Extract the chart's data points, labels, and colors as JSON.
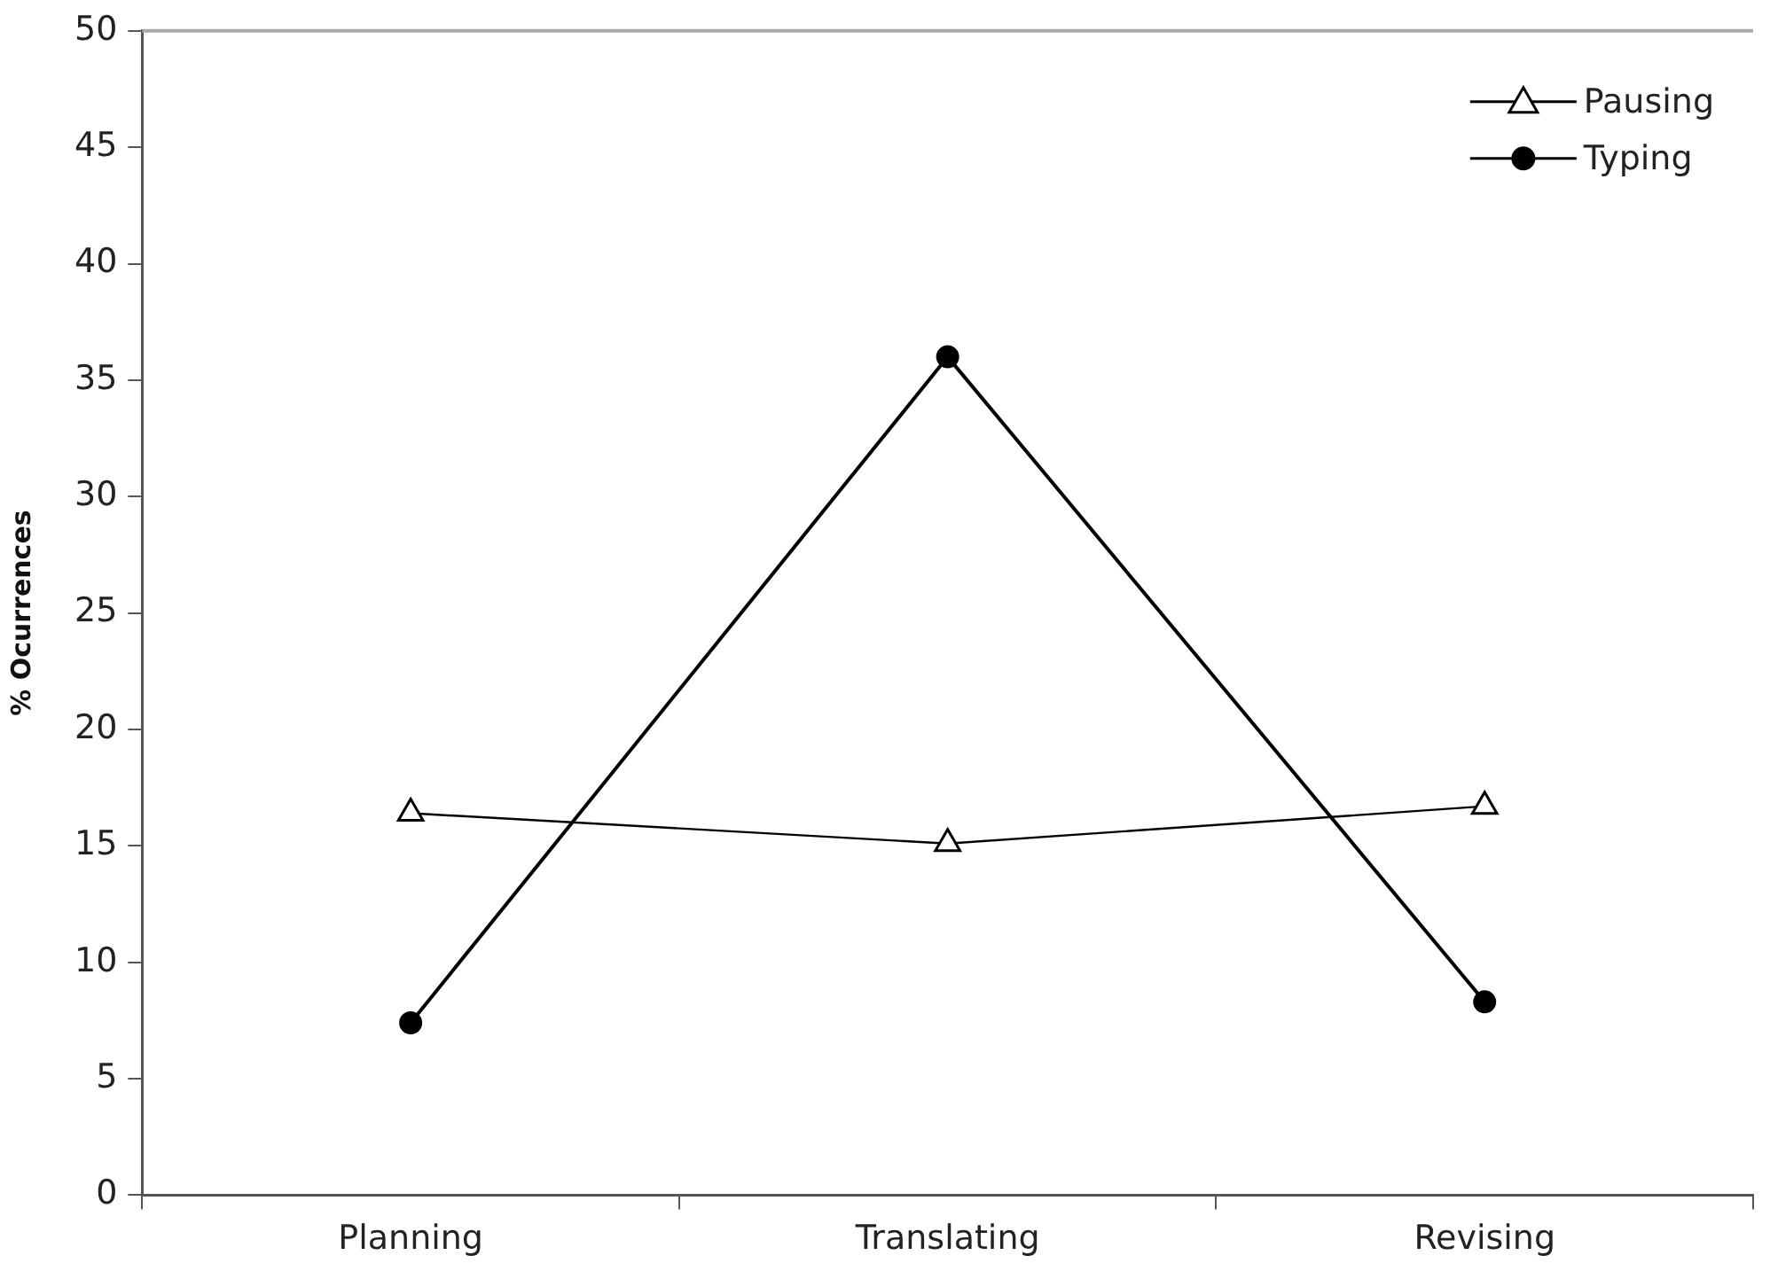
{
  "chart_data": {
    "type": "line",
    "ylabel": "% Ocurrences",
    "categories": [
      "Planning",
      "Translating",
      "Revising"
    ],
    "series": [
      {
        "name": "Pausing",
        "color": "#000000",
        "marker": "triangle",
        "values": [
          16.4,
          15.1,
          16.7
        ]
      },
      {
        "name": "Typing",
        "color": "#000000",
        "marker": "circle",
        "values": [
          7.4,
          36.0,
          8.3
        ]
      }
    ],
    "ylim": [
      0,
      50
    ],
    "yticks": [
      0,
      5,
      10,
      15,
      20,
      25,
      30,
      35,
      40,
      45,
      50
    ],
    "grid": false,
    "legend": "top right"
  }
}
